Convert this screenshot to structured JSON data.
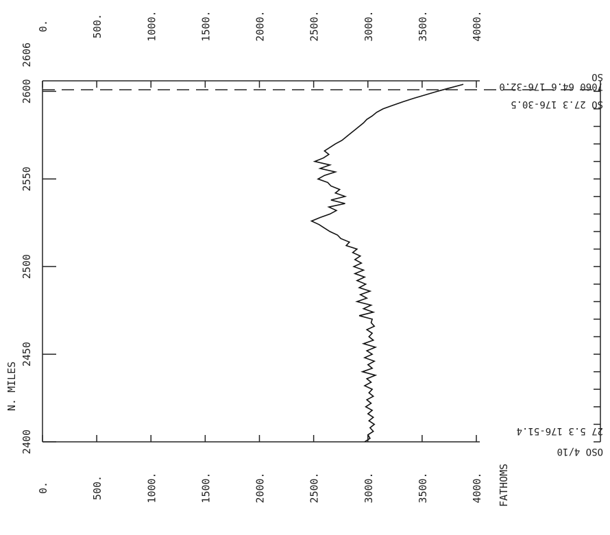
{
  "chart_data": {
    "type": "line",
    "title": "",
    "xlabel": "N. MILES",
    "ylabel": "FATHOMS",
    "xlim": [
      2400,
      2606
    ],
    "ylim": [
      0,
      4000
    ],
    "x_ticks": [
      "2400",
      "2450",
      "2500",
      "2550",
      "2600"
    ],
    "x_end_label": "2606",
    "y_ticks": [
      "0.",
      "500.",
      "1000.",
      "1500.",
      "2000.",
      "2500.",
      "3000.",
      "3500.",
      "4000."
    ],
    "grid": false,
    "legend": "none",
    "series": [
      {
        "x": [
          2400,
          2402,
          2404,
          2406,
          2408,
          2410,
          2412,
          2414,
          2416,
          2418,
          2420,
          2422,
          2424,
          2426,
          2428,
          2430,
          2432,
          2434,
          2436,
          2438,
          2440,
          2442,
          2444,
          2446,
          2448,
          2450,
          2452,
          2454,
          2456,
          2458,
          2460,
          2462,
          2464,
          2466,
          2468,
          2470,
          2472,
          2474,
          2476,
          2478,
          2480,
          2482,
          2484,
          2486,
          2488,
          2490,
          2492,
          2494,
          2496,
          2498,
          2500,
          2502,
          2504,
          2506,
          2508,
          2510,
          2512,
          2514,
          2516,
          2518,
          2520,
          2522,
          2524,
          2526,
          2528,
          2530,
          2532,
          2534,
          2536,
          2538,
          2540,
          2542,
          2544,
          2546,
          2548,
          2550,
          2552,
          2554,
          2556,
          2558,
          2560,
          2562,
          2564,
          2566,
          2568,
          2570,
          2572,
          2574,
          2576,
          2578,
          2580,
          2582,
          2584,
          2586,
          2588,
          2590,
          2592,
          2594,
          2596,
          2598,
          2600,
          2602,
          2604
        ],
        "y": [
          2970,
          3020,
          3000,
          3050,
          3020,
          3060,
          3010,
          3050,
          3000,
          3040,
          2980,
          3030,
          2990,
          3050,
          3010,
          3040,
          2970,
          3030,
          2990,
          3070,
          2950,
          3040,
          3000,
          3060,
          2970,
          3040,
          2990,
          3070,
          2960,
          3050,
          3010,
          3040,
          2990,
          3060,
          3030,
          3040,
          2920,
          3050,
          2960,
          3030,
          2900,
          2990,
          2930,
          3020,
          2920,
          2980,
          2900,
          2970,
          2880,
          2960,
          2870,
          2940,
          2880,
          2930,
          2860,
          2900,
          2800,
          2830,
          2750,
          2720,
          2650,
          2600,
          2550,
          2480,
          2560,
          2650,
          2710,
          2640,
          2790,
          2660,
          2790,
          2700,
          2740,
          2660,
          2630,
          2540,
          2600,
          2700,
          2560,
          2650,
          2510,
          2590,
          2640,
          2600,
          2650,
          2700,
          2760,
          2800,
          2840,
          2880,
          2920,
          2960,
          2990,
          3040,
          3080,
          3140,
          3230,
          3320,
          3420,
          3530,
          3640,
          3760,
          3880
        ]
      }
    ],
    "annotations": {
      "top_right_1": "SO 27.3 176-30.5",
      "top_right_2": "7060 64.6 176-32.0",
      "top_right_3": "SO",
      "bottom_right_1": "27 5.3 176-51.4",
      "bottom_right_2": "OSO 4/10"
    }
  }
}
